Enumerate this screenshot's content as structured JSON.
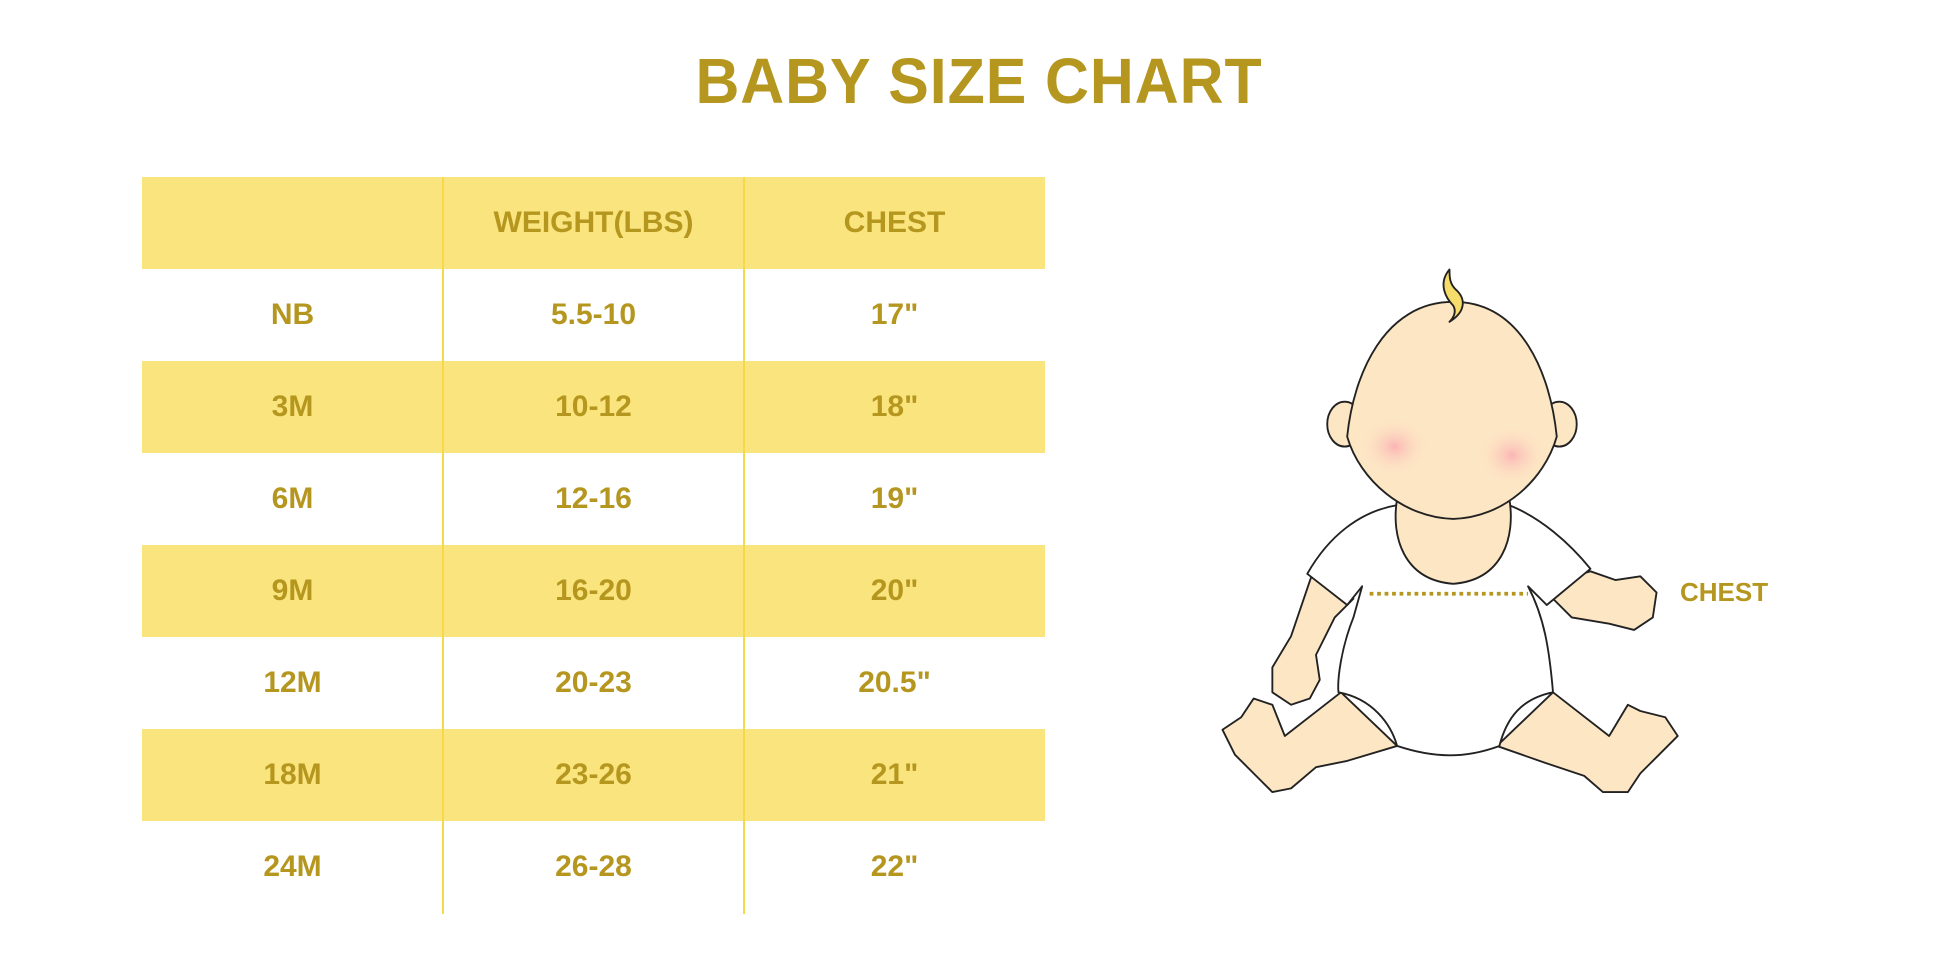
{
  "title": "BABY SIZE CHART",
  "table": {
    "headers": [
      "",
      "WEIGHT(LBS)",
      "CHEST"
    ],
    "rows": [
      [
        "NB",
        "5.5-10",
        "17\""
      ],
      [
        "3M",
        "10-12",
        "18\""
      ],
      [
        "6M",
        "12-16",
        "19\""
      ],
      [
        "9M",
        "16-20",
        "20\""
      ],
      [
        "12M",
        "20-23",
        "20.5\""
      ],
      [
        "18M",
        "23-26",
        "21\""
      ],
      [
        "24M",
        "26-28",
        "22\""
      ]
    ]
  },
  "illustration": {
    "chest_label": "CHEST"
  },
  "colors": {
    "text": "#b5961e",
    "band": "#fae47e",
    "divider": "#f5d94a"
  }
}
